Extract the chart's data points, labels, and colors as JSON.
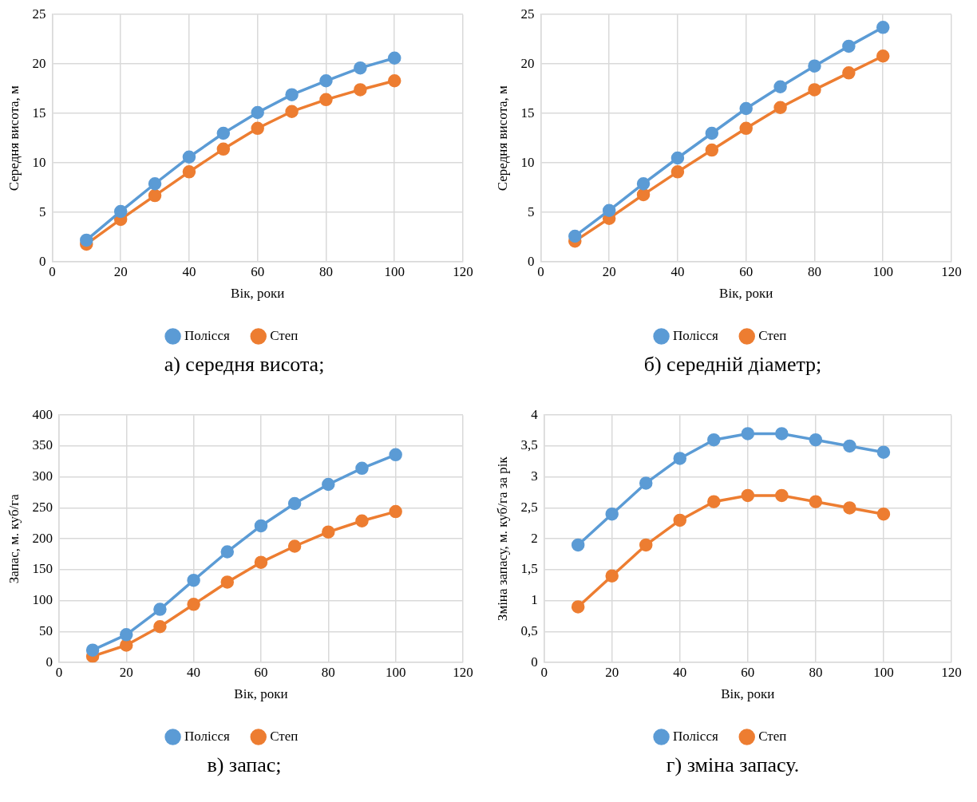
{
  "chart_data": [
    {
      "type": "line",
      "xlabel": "Вік, роки",
      "ylabel": "Середня висота, м",
      "x": [
        10,
        20,
        30,
        40,
        50,
        60,
        70,
        80,
        90,
        100
      ],
      "xlim": [
        0,
        120
      ],
      "xticks": [
        0,
        20,
        40,
        60,
        80,
        100,
        120
      ],
      "ylim": [
        0,
        25
      ],
      "yticks": [
        0,
        5,
        10,
        15,
        20,
        25
      ],
      "grid": true,
      "legend": "bottom",
      "marker": "circle",
      "line_style": "solid",
      "annotations": [
        "а) середня висота;"
      ],
      "series": [
        {
          "name": "Полісся",
          "color": "#5b9bd5",
          "values": [
            2.2,
            5.1,
            7.9,
            10.6,
            13.0,
            15.1,
            16.9,
            18.3,
            19.6,
            20.6
          ]
        },
        {
          "name": "Степ",
          "color": "#ed7d31",
          "values": [
            1.8,
            4.3,
            6.7,
            9.1,
            11.4,
            13.5,
            15.2,
            16.4,
            17.4,
            18.3
          ]
        }
      ]
    },
    {
      "type": "line",
      "xlabel": "Вік, роки",
      "ylabel": "Середня висота, м",
      "x": [
        10,
        20,
        30,
        40,
        50,
        60,
        70,
        80,
        90,
        100
      ],
      "xlim": [
        0,
        120
      ],
      "xticks": [
        0,
        20,
        40,
        60,
        80,
        100,
        120
      ],
      "ylim": [
        0,
        25
      ],
      "yticks": [
        0,
        5,
        10,
        15,
        20,
        25
      ],
      "grid": true,
      "legend": "bottom",
      "marker": "circle",
      "line_style": "solid",
      "annotations": [
        "б) середній діаметр;"
      ],
      "series": [
        {
          "name": "Полісся",
          "color": "#5b9bd5",
          "values": [
            2.6,
            5.2,
            7.9,
            10.5,
            13.0,
            15.5,
            17.7,
            19.8,
            21.8,
            23.7
          ]
        },
        {
          "name": "Степ",
          "color": "#ed7d31",
          "values": [
            2.1,
            4.4,
            6.8,
            9.1,
            11.3,
            13.5,
            15.6,
            17.4,
            19.1,
            20.8
          ]
        }
      ]
    },
    {
      "type": "line",
      "xlabel": "Вік, роки",
      "ylabel": "Запас, м. куб/га",
      "x": [
        10,
        20,
        30,
        40,
        50,
        60,
        70,
        80,
        90,
        100
      ],
      "xlim": [
        0,
        120
      ],
      "xticks": [
        0,
        20,
        40,
        60,
        80,
        100,
        120
      ],
      "ylim": [
        0,
        400
      ],
      "yticks": [
        0,
        50,
        100,
        150,
        200,
        250,
        300,
        350,
        400
      ],
      "grid": true,
      "legend": "bottom",
      "marker": "circle",
      "line_style": "solid",
      "annotations": [
        "в) запас;"
      ],
      "series": [
        {
          "name": "Полісся",
          "color": "#5b9bd5",
          "values": [
            20,
            45,
            86,
            133,
            179,
            221,
            257,
            288,
            314,
            336
          ]
        },
        {
          "name": "Степ",
          "color": "#ed7d31",
          "values": [
            10,
            28,
            58,
            94,
            130,
            162,
            188,
            211,
            229,
            244
          ]
        }
      ]
    },
    {
      "type": "line",
      "xlabel": "Вік, роки",
      "ylabel": "Зміна запасу, м. куб/га за рік",
      "x": [
        10,
        20,
        30,
        40,
        50,
        60,
        70,
        80,
        90,
        100
      ],
      "xlim": [
        0,
        120
      ],
      "xticks": [
        0,
        20,
        40,
        60,
        80,
        100,
        120
      ],
      "ylim": [
        0,
        4
      ],
      "yticks": [
        0,
        {
          "value": 0.5,
          "label": "0,5"
        },
        1,
        {
          "value": 1.5,
          "label": "1,5"
        },
        2,
        {
          "value": 2.5,
          "label": "2,5"
        },
        3,
        {
          "value": 3.5,
          "label": "3,5"
        },
        4
      ],
      "grid": true,
      "legend": "bottom",
      "marker": "circle",
      "line_style": "solid",
      "annotations": [
        "г) зміна запасу."
      ],
      "series": [
        {
          "name": "Полісся",
          "color": "#5b9bd5",
          "values": [
            1.9,
            2.4,
            2.9,
            3.3,
            3.6,
            3.7,
            3.7,
            3.6,
            3.5,
            3.4
          ]
        },
        {
          "name": "Степ",
          "color": "#ed7d31",
          "values": [
            0.9,
            1.4,
            1.9,
            2.3,
            2.6,
            2.7,
            2.7,
            2.6,
            2.5,
            2.4
          ]
        }
      ]
    }
  ]
}
